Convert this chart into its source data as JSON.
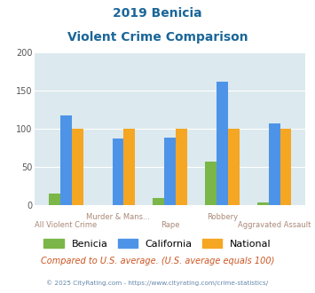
{
  "title_line1": "2019 Benicia",
  "title_line2": "Violent Crime Comparison",
  "benicia": [
    15,
    0,
    9,
    57,
    3
  ],
  "california": [
    118,
    87,
    88,
    162,
    107
  ],
  "national": [
    100,
    100,
    100,
    100,
    100
  ],
  "color_benicia": "#7ab648",
  "color_california": "#4d94e8",
  "color_national": "#f5a623",
  "ylim": [
    0,
    200
  ],
  "yticks": [
    0,
    50,
    100,
    150,
    200
  ],
  "background_color": "#dce9ee",
  "title_color": "#1a6699",
  "axis_label_color": "#aa8877",
  "legend_labels": [
    "Benicia",
    "California",
    "National"
  ],
  "footer_text": "Compared to U.S. average. (U.S. average equals 100)",
  "copyright_text": "© 2025 CityRating.com - https://www.cityrating.com/crime-statistics/",
  "footer_color": "#cc5522",
  "copyright_color": "#6688aa",
  "top_row_labels": [
    "",
    "Murder & Mans...",
    "",
    "Robbery",
    ""
  ],
  "bottom_row_labels": [
    "All Violent Crime",
    "",
    "Rape",
    "",
    "Aggravated Assault"
  ]
}
